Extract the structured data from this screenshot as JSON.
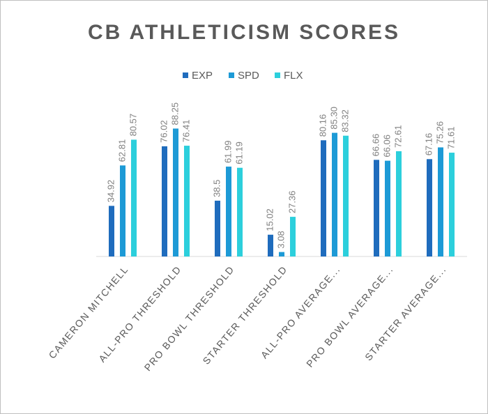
{
  "chart_data": {
    "type": "bar",
    "title": "CB ATHLETICISM SCORES",
    "categories": [
      "CAMERON MITCHELL",
      "ALL-PRO THRESHOLD",
      "PRO BOWL THRESHOLD",
      "STARTER THRESHOLD",
      "ALL-PRO AVERAGE...",
      "PRO BOWL AVERAGE...",
      "STARTER AVERAGE..."
    ],
    "series": [
      {
        "name": "EXP",
        "color": "#1f6cbd",
        "values": [
          34.92,
          76.02,
          38.5,
          15.02,
          80.16,
          66.66,
          67.16
        ],
        "value_labels": [
          "34.92",
          "76.02",
          "38.5",
          "15.02",
          "80.16",
          "66.66",
          "67.16"
        ]
      },
      {
        "name": "SPD",
        "color": "#1d9ad6",
        "values": [
          62.81,
          88.25,
          61.99,
          3.08,
          85.3,
          66.06,
          75.26
        ],
        "value_labels": [
          "62.81",
          "88.25",
          "61.99",
          "3.08",
          "85.30",
          "66.06",
          "75.26"
        ]
      },
      {
        "name": "FLX",
        "color": "#2ccfdc",
        "values": [
          80.57,
          76.41,
          61.19,
          27.36,
          83.32,
          72.61,
          71.61
        ],
        "value_labels": [
          "80.57",
          "76.41",
          "61.19",
          "27.36",
          "83.32",
          "72.61",
          "71.61"
        ]
      }
    ],
    "ylim": [
      0,
      100
    ],
    "legend": "top"
  }
}
